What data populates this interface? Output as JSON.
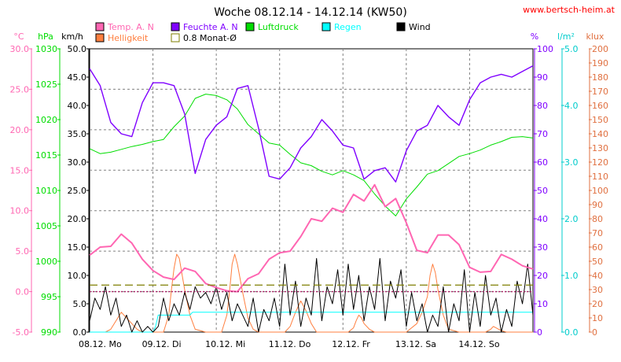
{
  "chart_data": {
    "type": "line",
    "title": "Woche 08.12.14 - 14.12.14 (KW50)",
    "source_label": "www.bertsch-heim.at",
    "x_day_labels": [
      "08.12.  Mo",
      "09.12.  Di",
      "10.12.  Mi",
      "11.12.  Do",
      "12.12.  Fr",
      "13.12.  Sa",
      "14.12.  So"
    ],
    "x_range_hours": [
      0,
      168
    ],
    "grid": true,
    "legend": [
      {
        "label": "Temp. A. N",
        "color": "#ff66b2",
        "marker": "filled"
      },
      {
        "label": "Helligkeit",
        "color": "#ff7f3f",
        "marker": "filled"
      },
      {
        "label": "Feuchte A. N",
        "color": "#7f00ff",
        "marker": "filled"
      },
      {
        "label": "0.8 Monat-Ø",
        "color": "#7f7f00",
        "marker": "outline"
      },
      {
        "label": "Luftdruck",
        "color": "#00dd00",
        "marker": "filled"
      },
      {
        "label": "Regen",
        "color": "#00ffff",
        "marker": "filled"
      },
      {
        "label": "Wind",
        "color": "#000000",
        "marker": "filled"
      }
    ],
    "axes": {
      "temp": {
        "unit": "°C",
        "range": [
          -5,
          30
        ],
        "ticks": [
          "30.0",
          "25.0",
          "20.0",
          "15.0",
          "10.0",
          "5.0",
          "0.0",
          "-5.0"
        ],
        "color": "#ff66b2"
      },
      "pressure": {
        "unit": "hPa",
        "range": [
          990,
          1030
        ],
        "ticks": [
          "1030",
          "1025",
          "1020",
          "1015",
          "1010",
          "1005",
          "1000",
          "995",
          "990"
        ],
        "color": "#00dd00"
      },
      "wind": {
        "unit": "km/h",
        "range": [
          0,
          50
        ],
        "ticks": [
          "50.0",
          "45.0",
          "40.0",
          "35.0",
          "30.0",
          "25.0",
          "20.0",
          "15.0",
          "10.0",
          "5.0",
          "0.0"
        ],
        "color": "#000000"
      },
      "humidity": {
        "unit": "%",
        "range": [
          0,
          100
        ],
        "ticks": [
          "100",
          "90",
          "80",
          "70",
          "60",
          "50",
          "40",
          "30",
          "20",
          "10",
          "0"
        ],
        "color": "#7f00ff"
      },
      "rain": {
        "unit": "l/m²",
        "range": [
          0,
          5
        ],
        "ticks": [
          "5.0",
          "4.0",
          "3.0",
          "2.0",
          "1.0",
          "0.0"
        ],
        "color": "#00cccc"
      },
      "light": {
        "unit": "klux",
        "range": [
          0,
          200
        ],
        "ticks": [
          "200",
          "190",
          "180",
          "170",
          "160",
          "150",
          "140",
          "130",
          "120",
          "110",
          "100",
          "90",
          "80",
          "70",
          "60",
          "50",
          "40",
          "30",
          "20",
          "10",
          "0"
        ],
        "color": "#e07040"
      }
    },
    "reference_lines": [
      {
        "label": "0.8 Monat-Ø",
        "axis": "wind",
        "value": 8.3,
        "color": "#7f7f00",
        "style": "dashed"
      },
      {
        "label": "Temp 0",
        "axis": "temp",
        "value": 0,
        "color": "#aa2266",
        "style": "dotted"
      }
    ],
    "series": [
      {
        "name": "Temp. A. N",
        "axis": "temp",
        "color": "#ff66b2",
        "x": [
          0,
          4,
          8,
          12,
          16,
          20,
          24,
          28,
          32,
          36,
          40,
          44,
          48,
          52,
          56,
          60,
          64,
          68,
          72,
          76,
          80,
          84,
          88,
          92,
          96,
          100,
          104,
          108,
          112,
          116,
          120,
          124,
          128,
          132,
          136,
          140,
          144,
          148,
          152,
          156,
          160,
          164,
          168
        ],
        "y": [
          4.5,
          5.5,
          5.6,
          7.1,
          6.0,
          4.0,
          2.6,
          1.8,
          1.5,
          2.9,
          2.5,
          1.0,
          0.5,
          0.1,
          0.0,
          1.6,
          2.2,
          4.0,
          4.8,
          5.0,
          6.8,
          9.0,
          8.7,
          10.3,
          9.8,
          12.0,
          11.2,
          13.2,
          10.5,
          11.5,
          8.5,
          5.1,
          4.8,
          7.0,
          7.0,
          5.8,
          3.0,
          2.4,
          2.5,
          4.6,
          4.0,
          3.2,
          2.8
        ]
      },
      {
        "name": "Feuchte A. N",
        "axis": "humidity",
        "color": "#7f00ff",
        "x": [
          0,
          4,
          8,
          12,
          16,
          20,
          24,
          28,
          32,
          36,
          40,
          44,
          48,
          52,
          56,
          60,
          64,
          68,
          72,
          76,
          80,
          84,
          88,
          92,
          96,
          100,
          104,
          108,
          112,
          116,
          120,
          124,
          128,
          132,
          136,
          140,
          144,
          148,
          152,
          156,
          160,
          164,
          168
        ],
        "y": [
          93,
          87,
          74,
          70,
          69,
          81,
          88,
          88,
          87,
          77,
          56,
          68,
          73,
          76,
          86,
          87,
          72,
          55,
          54,
          58,
          65,
          69,
          75,
          71,
          66,
          65,
          54,
          57,
          58,
          53,
          64,
          71,
          73,
          80,
          76,
          73,
          82,
          88,
          90,
          91,
          90,
          92,
          94
        ]
      },
      {
        "name": "Luftdruck",
        "axis": "pressure",
        "color": "#00dd00",
        "x": [
          0,
          4,
          8,
          12,
          16,
          20,
          24,
          28,
          32,
          36,
          40,
          44,
          48,
          52,
          56,
          60,
          64,
          68,
          72,
          76,
          80,
          84,
          88,
          92,
          96,
          100,
          104,
          108,
          112,
          116,
          120,
          124,
          128,
          132,
          136,
          140,
          144,
          148,
          152,
          156,
          160,
          164,
          168
        ],
        "y": [
          1015.9,
          1015.2,
          1015.4,
          1015.8,
          1016.2,
          1016.5,
          1016.9,
          1017.2,
          1019.0,
          1020.5,
          1023.0,
          1023.6,
          1023.4,
          1022.8,
          1021.5,
          1019.3,
          1018.0,
          1016.7,
          1016.4,
          1015.1,
          1013.9,
          1013.5,
          1012.7,
          1012.2,
          1012.8,
          1012.2,
          1011.4,
          1009.5,
          1007.8,
          1006.4,
          1008.8,
          1010.5,
          1012.3,
          1012.8,
          1013.8,
          1014.8,
          1015.2,
          1015.7,
          1016.4,
          1016.9,
          1017.5,
          1017.6,
          1017.4
        ]
      },
      {
        "name": "Regen",
        "axis": "rain",
        "color": "#00ffff",
        "x": [
          0,
          24,
          25,
          26,
          38,
          39,
          40,
          168
        ],
        "y": [
          0,
          0,
          0.1,
          0.3,
          0.3,
          0.35,
          0.35,
          0.35
        ]
      },
      {
        "name": "Wind",
        "axis": "wind",
        "color": "#000000",
        "x": [
          0,
          2,
          4,
          6,
          8,
          10,
          12,
          14,
          16,
          18,
          20,
          22,
          24,
          26,
          28,
          30,
          32,
          34,
          36,
          38,
          40,
          42,
          44,
          46,
          48,
          50,
          52,
          54,
          56,
          58,
          60,
          62,
          64,
          66,
          68,
          70,
          72,
          74,
          76,
          78,
          80,
          82,
          84,
          86,
          88,
          90,
          92,
          94,
          96,
          98,
          100,
          102,
          104,
          106,
          108,
          110,
          112,
          114,
          116,
          118,
          120,
          122,
          124,
          126,
          128,
          130,
          132,
          134,
          136,
          138,
          140,
          142,
          144,
          146,
          148,
          150,
          152,
          154,
          156,
          158,
          160,
          162,
          164,
          166,
          168
        ],
        "y": [
          2,
          6,
          4,
          8,
          3,
          6,
          1,
          3,
          0,
          2,
          0,
          1,
          0,
          1,
          6,
          2,
          5,
          3,
          7,
          4,
          8,
          6,
          7,
          5,
          8,
          4,
          7,
          2,
          5,
          3,
          1,
          6,
          0,
          4,
          2,
          6,
          1,
          12,
          3,
          9,
          1,
          6,
          3,
          13,
          2,
          8,
          5,
          11,
          3,
          12,
          4,
          10,
          2,
          8,
          4,
          13,
          2,
          9,
          6,
          11,
          1,
          7,
          2,
          5,
          0,
          3,
          1,
          8,
          0,
          5,
          2,
          11,
          0,
          7,
          1,
          10,
          3,
          6,
          0,
          4,
          1,
          9,
          5,
          12,
          3
        ]
      },
      {
        "name": "Helligkeit",
        "axis": "light",
        "color": "#ff7f3f",
        "x": [
          0,
          4,
          6,
          8,
          10,
          12,
          14,
          16,
          18,
          20,
          22,
          24,
          26,
          28,
          30,
          31,
          32,
          33,
          34,
          36,
          38,
          40,
          44,
          46,
          48,
          50,
          52,
          53,
          54,
          55,
          56,
          58,
          60,
          62,
          64,
          68,
          70,
          72,
          74,
          76,
          78,
          80,
          82,
          84,
          86,
          88,
          90,
          92,
          94,
          96,
          98,
          100,
          101,
          102,
          103,
          104,
          106,
          108,
          110,
          112,
          116,
          118,
          120,
          124,
          126,
          128,
          129,
          130,
          131,
          132,
          134,
          136,
          140,
          142,
          144,
          148,
          150,
          152,
          153,
          154,
          156,
          158,
          160,
          164,
          166,
          168
        ],
        "y": [
          0,
          0,
          0,
          2,
          8,
          14,
          10,
          6,
          2,
          0,
          0,
          0,
          0,
          0,
          12,
          30,
          45,
          55,
          52,
          30,
          12,
          2,
          0,
          0,
          0,
          0,
          12,
          28,
          48,
          55,
          48,
          28,
          10,
          2,
          0,
          0,
          0,
          0,
          0,
          4,
          14,
          22,
          15,
          6,
          0,
          0,
          0,
          0,
          0,
          0,
          0,
          3,
          8,
          12,
          10,
          6,
          2,
          0,
          0,
          0,
          0,
          0,
          0,
          6,
          14,
          25,
          40,
          48,
          42,
          30,
          12,
          2,
          0,
          0,
          0,
          0,
          0,
          2,
          4,
          3,
          1,
          0,
          0,
          0,
          0,
          0
        ]
      }
    ]
  }
}
